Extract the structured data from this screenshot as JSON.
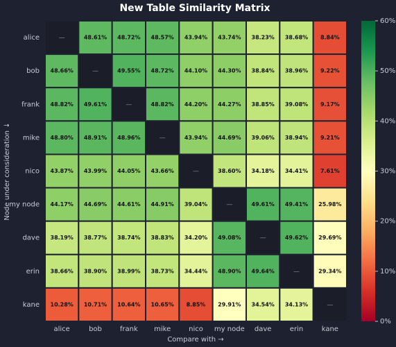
{
  "chart_data": {
    "type": "heatmap",
    "title": "New Table Similarity Matrix",
    "xlabel": "Compare with →",
    "ylabel": "Node under consideration ↓",
    "x": [
      "alice",
      "bob",
      "frank",
      "mike",
      "nico",
      "my node",
      "dave",
      "erin",
      "kane"
    ],
    "y": [
      "alice",
      "bob",
      "frank",
      "mike",
      "nico",
      "my node",
      "dave",
      "erin",
      "kane"
    ],
    "values": [
      [
        null,
        48.61,
        48.72,
        48.57,
        43.94,
        43.74,
        38.23,
        38.68,
        8.84
      ],
      [
        48.66,
        null,
        49.55,
        48.72,
        44.1,
        44.3,
        38.84,
        38.96,
        9.22
      ],
      [
        48.82,
        49.61,
        null,
        48.82,
        44.2,
        44.27,
        38.85,
        39.08,
        9.17
      ],
      [
        48.8,
        48.91,
        48.96,
        null,
        43.94,
        44.69,
        39.06,
        38.94,
        9.21
      ],
      [
        43.87,
        43.99,
        44.05,
        43.66,
        null,
        38.6,
        34.18,
        34.41,
        7.61
      ],
      [
        44.17,
        44.69,
        44.61,
        44.91,
        39.04,
        null,
        49.61,
        49.41,
        25.98
      ],
      [
        38.19,
        38.77,
        38.74,
        38.83,
        34.2,
        49.08,
        null,
        49.62,
        29.69
      ],
      [
        38.66,
        38.9,
        38.99,
        38.73,
        34.44,
        48.9,
        49.64,
        null,
        29.34
      ],
      [
        10.28,
        10.71,
        10.64,
        10.65,
        8.85,
        29.91,
        34.54,
        34.13,
        null
      ]
    ],
    "value_labels": [
      [
        "—",
        "48.61%",
        "48.72%",
        "48.57%",
        "43.94%",
        "43.74%",
        "38.23%",
        "38.68%",
        "8.84%"
      ],
      [
        "48.66%",
        "—",
        "49.55%",
        "48.72%",
        "44.10%",
        "44.30%",
        "38.84%",
        "38.96%",
        "9.22%"
      ],
      [
        "48.82%",
        "49.61%",
        "—",
        "48.82%",
        "44.20%",
        "44.27%",
        "38.85%",
        "39.08%",
        "9.17%"
      ],
      [
        "48.80%",
        "48.91%",
        "48.96%",
        "—",
        "43.94%",
        "44.69%",
        "39.06%",
        "38.94%",
        "9.21%"
      ],
      [
        "43.87%",
        "43.99%",
        "44.05%",
        "43.66%",
        "—",
        "38.60%",
        "34.18%",
        "34.41%",
        "7.61%"
      ],
      [
        "44.17%",
        "44.69%",
        "44.61%",
        "44.91%",
        "39.04%",
        "—",
        "49.61%",
        "49.41%",
        "25.98%"
      ],
      [
        "38.19%",
        "38.77%",
        "38.74%",
        "38.83%",
        "34.20%",
        "49.08%",
        "—",
        "49.62%",
        "29.69%"
      ],
      [
        "38.66%",
        "38.90%",
        "38.99%",
        "38.73%",
        "34.44%",
        "48.90%",
        "49.64%",
        "—",
        "29.34%"
      ],
      [
        "10.28%",
        "10.71%",
        "10.64%",
        "10.65%",
        "8.85%",
        "29.91%",
        "34.54%",
        "34.13%",
        "—"
      ]
    ],
    "colorscale": [
      "#a50026",
      "#d73027",
      "#f46d43",
      "#fdae61",
      "#fee08b",
      "#ffffbf",
      "#d9ef8b",
      "#a6d96a",
      "#66bd63",
      "#1a9850",
      "#006837"
    ],
    "missing_color": "#1b1e29",
    "clim": [
      0,
      60
    ],
    "cticks": [
      {
        "value": 0,
        "label": "0%"
      },
      {
        "value": 10,
        "label": "10%"
      },
      {
        "value": 20,
        "label": "20%"
      },
      {
        "value": 30,
        "label": "30%"
      },
      {
        "value": 40,
        "label": "40%"
      },
      {
        "value": 50,
        "label": "50%"
      },
      {
        "value": 60,
        "label": "60%"
      }
    ]
  }
}
